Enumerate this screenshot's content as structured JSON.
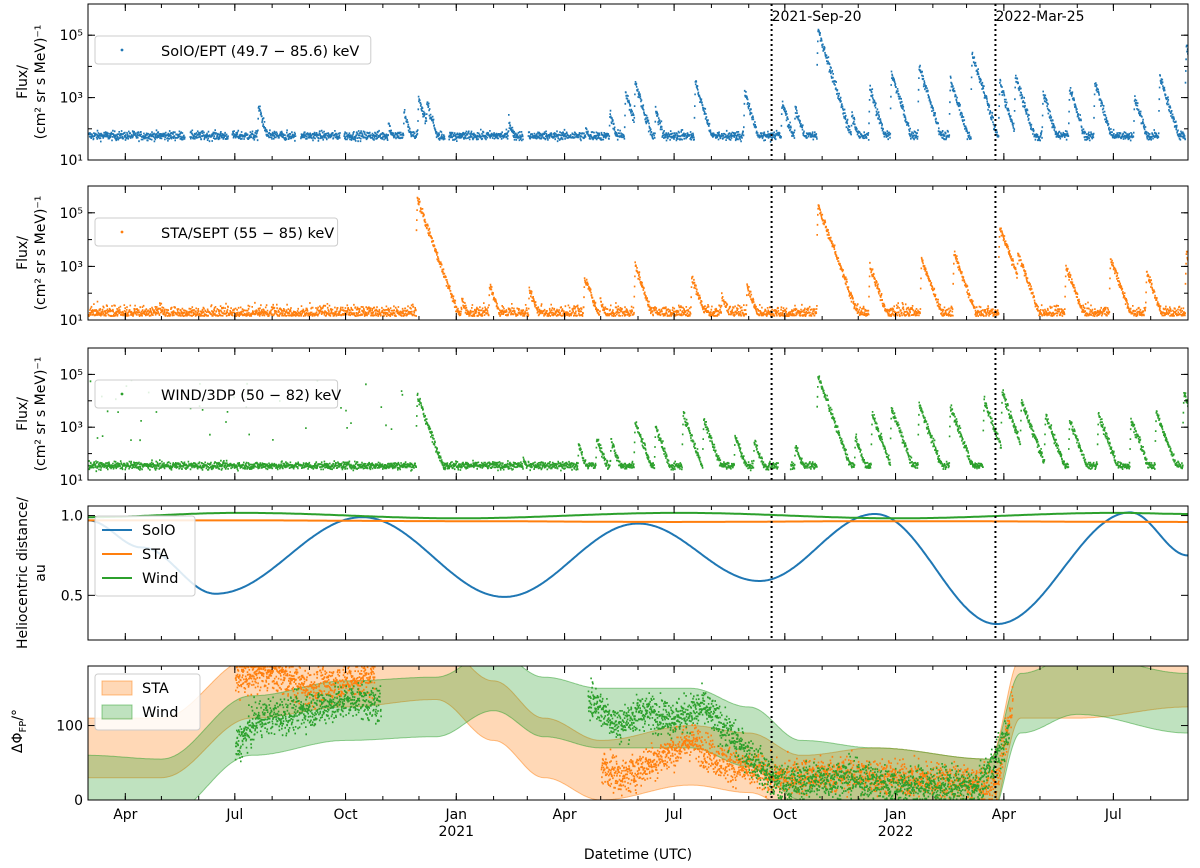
{
  "chart_data": [
    {
      "type": "scatter",
      "panel": "solo",
      "ylabel_line1": "Flux/",
      "ylabel_line2": "(cm² sr s MeV)⁻¹",
      "yscale": "log",
      "ylim": [
        10,
        1000000
      ],
      "yticks": [
        "10¹",
        "10³",
        "10⁵"
      ],
      "series": [
        {
          "name": "SolO/EPT (49.7 − 85.6) keV",
          "color": "#1f77b4",
          "baseline": 60,
          "gaps": [
            [
              "2020-05-20",
              "2020-05-24"
            ],
            [
              "2020-06-25",
              "2020-06-28"
            ],
            [
              "2020-08-20",
              "2020-08-24"
            ],
            [
              "2020-09-26",
              "2020-09-29"
            ],
            [
              "2020-12-22",
              "2020-12-25"
            ],
            [
              "2021-02-25",
              "2021-03-01"
            ]
          ],
          "events": [
            [
              "2020-07-20",
              500
            ],
            [
              "2020-11-05",
              150
            ],
            [
              "2020-11-18",
              350
            ],
            [
              "2020-11-30",
              1000
            ],
            [
              "2020-12-07",
              700
            ],
            [
              "2021-02-13",
              200
            ],
            [
              "2021-04-18",
              100
            ],
            [
              "2021-05-08",
              300
            ],
            [
              "2021-05-21",
              1500
            ],
            [
              "2021-05-29",
              3000
            ],
            [
              "2021-06-15",
              400
            ],
            [
              "2021-07-18",
              3000
            ],
            [
              "2021-08-28",
              1500
            ],
            [
              "2021-09-28",
              700
            ],
            [
              "2021-10-09",
              500
            ],
            [
              "2021-10-28",
              150000
            ],
            [
              "2021-11-10",
              800
            ],
            [
              "2021-11-25",
              300
            ],
            [
              "2021-12-10",
              2000
            ],
            [
              "2021-12-28",
              6000
            ],
            [
              "2022-01-20",
              10000
            ],
            [
              "2022-02-15",
              4000
            ],
            [
              "2022-03-05",
              25000
            ],
            [
              "2022-03-28",
              3000
            ],
            [
              "2022-04-10",
              5000
            ],
            [
              "2022-05-03",
              1500
            ],
            [
              "2022-05-25",
              2000
            ],
            [
              "2022-06-15",
              3000
            ],
            [
              "2022-07-18",
              1000
            ],
            [
              "2022-08-08",
              5000
            ],
            [
              "2022-08-30",
              40000
            ]
          ]
        }
      ]
    },
    {
      "type": "scatter",
      "panel": "sta",
      "ylabel_line1": "Flux/",
      "ylabel_line2": "(cm² sr s MeV)⁻¹",
      "yscale": "log",
      "ylim": [
        10,
        1000000
      ],
      "yticks": [
        "10¹",
        "10³",
        "10⁵"
      ],
      "series": [
        {
          "name": "STA/SEPT (55 − 85) keV",
          "color": "#ff7f0e",
          "baseline": 14,
          "gaps": [],
          "events": [
            [
              "2020-11-29",
              300000
            ],
            [
              "2021-01-05",
              60
            ],
            [
              "2021-01-28",
              200
            ],
            [
              "2021-03-02",
              150
            ],
            [
              "2021-04-17",
              400
            ],
            [
              "2021-04-30",
              50
            ],
            [
              "2021-05-29",
              1000
            ],
            [
              "2021-07-15",
              400
            ],
            [
              "2021-08-09",
              80
            ],
            [
              "2021-08-30",
              200
            ],
            [
              "2021-10-28",
              200000
            ],
            [
              "2021-11-12",
              100
            ],
            [
              "2021-12-10",
              1000
            ],
            [
              "2022-01-22",
              2000
            ],
            [
              "2022-02-18",
              3000
            ],
            [
              "2022-03-28",
              30000
            ],
            [
              "2022-04-12",
              3000
            ],
            [
              "2022-05-22",
              1000
            ],
            [
              "2022-06-28",
              2000
            ],
            [
              "2022-07-28",
              600
            ],
            [
              "2022-08-30",
              3000
            ]
          ]
        }
      ]
    },
    {
      "type": "scatter",
      "panel": "wind",
      "ylabel_line1": "Flux/",
      "ylabel_line2": "(cm² sr s MeV)⁻¹",
      "yscale": "log",
      "ylim": [
        10,
        1000000
      ],
      "yticks": [
        "10¹",
        "10³",
        "10⁵"
      ],
      "series": [
        {
          "name": "WIND/3DP (50 − 82) keV",
          "color": "#2ca02c",
          "baseline": 35,
          "gaps": [
            [
              "2021-09-25",
              "2021-10-05"
            ]
          ],
          "events": [
            [
              "2020-11-29",
              15000
            ],
            [
              "2021-02-25",
              60
            ],
            [
              "2021-04-12",
              200
            ],
            [
              "2021-04-27",
              400
            ],
            [
              "2021-05-09",
              300
            ],
            [
              "2021-05-29",
              1500
            ],
            [
              "2021-06-15",
              1000
            ],
            [
              "2021-07-08",
              3000
            ],
            [
              "2021-07-25",
              2000
            ],
            [
              "2021-08-20",
              500
            ],
            [
              "2021-09-05",
              300
            ],
            [
              "2021-10-09",
              200
            ],
            [
              "2021-10-28",
              80000
            ],
            [
              "2021-11-12",
              500
            ],
            [
              "2021-11-28",
              400
            ],
            [
              "2021-12-12",
              3000
            ],
            [
              "2021-12-28",
              5000
            ],
            [
              "2022-01-20",
              7000
            ],
            [
              "2022-02-15",
              6000
            ],
            [
              "2022-03-15",
              10000
            ],
            [
              "2022-03-30",
              20000
            ],
            [
              "2022-04-15",
              10000
            ],
            [
              "2022-05-05",
              3000
            ],
            [
              "2022-05-25",
              2000
            ],
            [
              "2022-06-18",
              3000
            ],
            [
              "2022-07-15",
              2000
            ],
            [
              "2022-08-05",
              4000
            ],
            [
              "2022-08-28",
              20000
            ]
          ]
        }
      ]
    },
    {
      "type": "line",
      "panel": "dist",
      "ylabel_line1": "Heliocentric distance/",
      "ylabel_line2": "au",
      "ylim": [
        0.22,
        1.06
      ],
      "yticks": [
        "0.5",
        "1.0"
      ],
      "series": [
        {
          "name": "SolO",
          "color": "#1f77b4",
          "x": [
            "2020-03-01",
            "2020-04-15",
            "2020-06-15",
            "2020-10-15",
            "2021-02-10",
            "2021-06-01",
            "2021-09-10",
            "2021-12-15",
            "2022-03-26",
            "2022-07-15",
            "2022-09-01"
          ],
          "y": [
            0.97,
            0.8,
            0.51,
            0.99,
            0.49,
            0.95,
            0.59,
            1.01,
            0.32,
            1.02,
            0.75
          ]
        },
        {
          "name": "STA",
          "color": "#ff7f0e",
          "x": [
            "2020-03-01",
            "2020-07-01",
            "2021-01-01",
            "2021-07-01",
            "2022-01-01",
            "2022-09-01"
          ],
          "y": [
            0.97,
            0.97,
            0.965,
            0.96,
            0.965,
            0.96
          ]
        },
        {
          "name": "Wind",
          "color": "#2ca02c",
          "x": [
            "2020-03-01",
            "2020-07-05",
            "2021-01-03",
            "2021-07-05",
            "2022-01-03",
            "2022-07-05",
            "2022-09-01"
          ],
          "y": [
            0.99,
            1.017,
            0.983,
            1.017,
            0.983,
            1.017,
            1.01
          ]
        }
      ]
    },
    {
      "type": "area",
      "panel": "dphi",
      "ylabel_line1": "ΔΦ",
      "ylabel_sub": "FP",
      "ylabel_tail": "/°",
      "ylim": [
        0,
        180
      ],
      "yticks": [
        "0",
        "100"
      ],
      "series": [
        {
          "name": "STA",
          "color": "#ff7f0e",
          "x": [
            "2020-03-01",
            "2020-05-01",
            "2020-07-15",
            "2020-10-01",
            "2020-12-15",
            "2021-02-01",
            "2021-03-15",
            "2021-05-01",
            "2021-07-15",
            "2021-09-01",
            "2021-10-15",
            "2021-12-15",
            "2022-03-20",
            "2022-04-15",
            "2022-06-01",
            "2022-09-01"
          ],
          "center": [
            70,
            70,
            150,
            165,
            175,
            120,
            70,
            40,
            60,
            50,
            20,
            30,
            15,
            150,
            150,
            165
          ],
          "width": 80
        },
        {
          "name": "Wind",
          "color": "#2ca02c",
          "x": [
            "2020-03-01",
            "2020-05-01",
            "2020-07-15",
            "2020-10-01",
            "2020-12-15",
            "2021-02-01",
            "2021-03-15",
            "2021-05-01",
            "2021-07-15",
            "2021-09-01",
            "2021-10-15",
            "2021-12-15",
            "2022-03-20",
            "2022-04-15",
            "2022-06-01",
            "2022-09-01"
          ],
          "center": [
            20,
            15,
            100,
            120,
            125,
            160,
            125,
            110,
            110,
            85,
            40,
            30,
            15,
            130,
            155,
            130
          ],
          "width": 80
        }
      ],
      "points": [
        {
          "color": "#ff7f0e",
          "x": [
            "2020-07-01",
            "2020-08-01",
            "2020-09-01",
            "2020-10-01",
            "2020-10-25",
            "2021-05-01",
            "2021-05-20",
            "2021-06-10",
            "2021-07-15",
            "2021-08-10",
            "2021-09-25",
            "2021-11-15",
            "2021-12-25",
            "2022-02-15",
            "2022-03-25",
            "2022-04-08"
          ],
          "y": [
            165,
            170,
            150,
            160,
            165,
            45,
            30,
            50,
            80,
            50,
            30,
            35,
            30,
            25,
            20,
            130
          ]
        },
        {
          "color": "#2ca02c",
          "x": [
            "2020-07-01",
            "2020-07-20",
            "2020-08-15",
            "2020-09-10",
            "2020-10-10",
            "2020-10-30",
            "2021-04-20",
            "2021-05-15",
            "2021-06-05",
            "2021-07-01",
            "2021-07-25",
            "2021-08-20",
            "2021-09-25",
            "2021-10-20",
            "2021-11-20",
            "2021-12-30",
            "2022-02-10",
            "2022-03-10",
            "2022-04-05"
          ],
          "y": [
            70,
            110,
            115,
            125,
            135,
            125,
            140,
            100,
            120,
            110,
            125,
            80,
            20,
            25,
            30,
            20,
            20,
            15,
            90
          ]
        }
      ]
    }
  ],
  "xaxis": {
    "label": "Datetime (UTC)",
    "range": [
      "2020-03-01",
      "2022-09-01"
    ],
    "ticks": [
      {
        "date": "2020-04-01",
        "label": "Apr"
      },
      {
        "date": "2020-07-01",
        "label": "Jul"
      },
      {
        "date": "2020-10-01",
        "label": "Oct"
      },
      {
        "date": "2021-01-01",
        "label": "Jan",
        "year": "2021"
      },
      {
        "date": "2021-04-01",
        "label": "Apr"
      },
      {
        "date": "2021-07-01",
        "label": "Jul"
      },
      {
        "date": "2021-10-01",
        "label": "Oct"
      },
      {
        "date": "2022-01-01",
        "label": "Jan",
        "year": "2022"
      },
      {
        "date": "2022-04-01",
        "label": "Apr"
      },
      {
        "date": "2022-07-01",
        "label": "Jul"
      }
    ]
  },
  "markers": [
    {
      "date": "2021-09-20",
      "label": "2021-Sep-20"
    },
    {
      "date": "2022-03-25",
      "label": "2022-Mar-25"
    }
  ]
}
